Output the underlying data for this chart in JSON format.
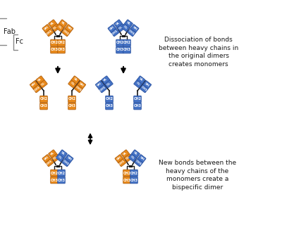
{
  "orange": "#E8891A",
  "blue": "#4472C4",
  "black": "#1a1a1a",
  "bg": "#ffffff",
  "orange_edge": "#b06010",
  "blue_edge": "#2a52a0",
  "fab_label": "Fab",
  "fc_label": "Fc",
  "text1": "Dissociation of bonds\nbetween heavy chains in\nthe original dimers\ncreates monomers",
  "text2": "New bonds between the\nheavy chains of the\nmonomers create a\nbispecific dimer"
}
